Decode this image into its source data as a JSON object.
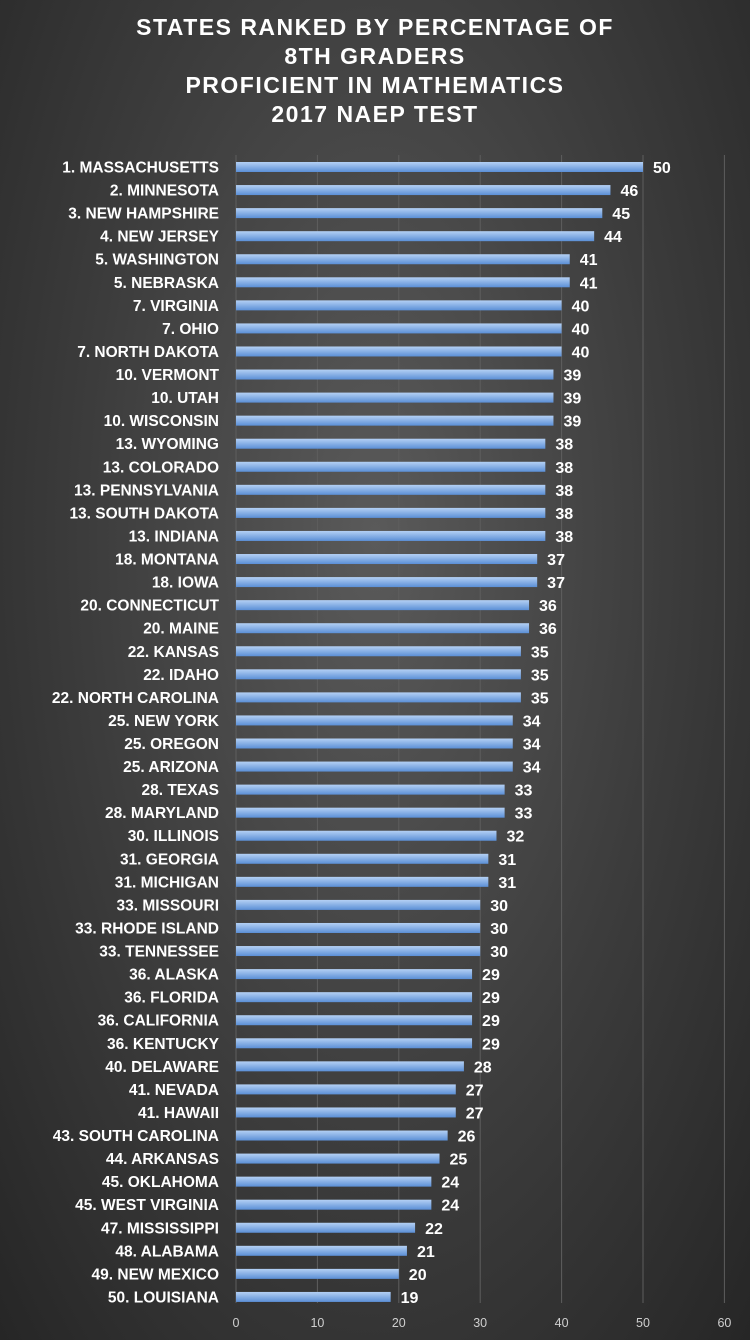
{
  "chart_data": {
    "type": "bar",
    "orientation": "horizontal",
    "title_lines": [
      "STATES RANKED BY PERCENTAGE OF",
      "8TH GRADERS",
      "PROFICIENT IN MATHEMATICS",
      "2017 NAEP TEST"
    ],
    "categories": [
      "1. MASSACHUSETTS",
      "2. MINNESOTA",
      "3. NEW HAMPSHIRE",
      "4. NEW JERSEY",
      "5. WASHINGTON",
      "5. NEBRASKA",
      "7. VIRGINIA",
      "7. OHIO",
      "7. NORTH DAKOTA",
      "10. VERMONT",
      "10. UTAH",
      "10. WISCONSIN",
      "13. WYOMING",
      "13. COLORADO",
      "13. PENNSYLVANIA",
      "13. SOUTH DAKOTA",
      "13. INDIANA",
      "18. MONTANA",
      "18. IOWA",
      "20. CONNECTICUT",
      "20. MAINE",
      "22. KANSAS",
      "22. IDAHO",
      "22. NORTH CAROLINA",
      "25. NEW YORK",
      "25. OREGON",
      "25. ARIZONA",
      "28. TEXAS",
      "28. MARYLAND",
      "30. ILLINOIS",
      "31. GEORGIA",
      "31. MICHIGAN",
      "33. MISSOURI",
      "33. RHODE ISLAND",
      "33. TENNESSEE",
      "36. ALASKA",
      "36. FLORIDA",
      "36. CALIFORNIA",
      "36. KENTUCKY",
      "40. DELAWARE",
      "41. NEVADA",
      "41. HAWAII",
      "43. SOUTH CAROLINA",
      "44. ARKANSAS",
      "45. OKLAHOMA",
      "45. WEST VIRGINIA",
      "47. MISSISSIPPI",
      "48. ALABAMA",
      "49. NEW MEXICO",
      "50. LOUISIANA"
    ],
    "values": [
      50,
      46,
      45,
      44,
      41,
      41,
      40,
      40,
      40,
      39,
      39,
      39,
      38,
      38,
      38,
      38,
      38,
      37,
      37,
      36,
      36,
      35,
      35,
      35,
      34,
      34,
      34,
      33,
      33,
      32,
      31,
      31,
      30,
      30,
      30,
      29,
      29,
      29,
      29,
      28,
      27,
      27,
      26,
      25,
      24,
      24,
      22,
      21,
      20,
      19
    ],
    "xlim": [
      0,
      60
    ],
    "x_ticks": [
      0,
      10,
      20,
      30,
      40,
      50,
      60
    ],
    "grid": true,
    "data_labels": true,
    "colors": {
      "bar_light": "#b4d0f4",
      "bar_dark": "#5b8fd6",
      "text": "#ffffff",
      "tick": "#cfcfcf",
      "grid": "#5e5e5e"
    }
  }
}
